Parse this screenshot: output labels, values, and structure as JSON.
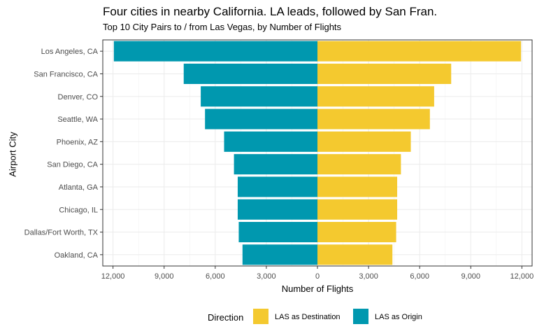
{
  "chart_data": {
    "type": "bar",
    "orientation": "horizontal-diverging",
    "title": "Four cities in nearby California. LA leads, followed by San Fran.",
    "subtitle": "Top 10 City Pairs to / from Las Vegas, by Number of Flights",
    "xlabel": "Number of Flights",
    "ylabel": "Airport City",
    "xlim": [
      -12600,
      12600
    ],
    "x_ticks": [
      -12000,
      -9000,
      -6000,
      -3000,
      0,
      3000,
      6000,
      9000,
      12000
    ],
    "x_tick_labels": [
      "12,000",
      "9,000",
      "6,000",
      "3,000",
      "0",
      "3,000",
      "6,000",
      "9,000",
      "12,000"
    ],
    "categories": [
      "Los Angeles, CA",
      "San Francisco, CA",
      "Denver, CO",
      "Seattle, WA",
      "Phoenix, AZ",
      "San Diego, CA",
      "Atlanta, GA",
      "Chicago, IL",
      "Dallas/Fort Worth, TX",
      "Oakland, CA"
    ],
    "series": [
      {
        "name": "LAS as Destination",
        "color": "#F4C92F",
        "values": [
          11950,
          7850,
          6850,
          6600,
          5480,
          4900,
          4680,
          4680,
          4620,
          4400
        ]
      },
      {
        "name": "LAS as Origin",
        "color": "#0098AF",
        "values": [
          11950,
          7850,
          6850,
          6600,
          5480,
          4900,
          4680,
          4680,
          4620,
          4400
        ]
      }
    ],
    "legend": {
      "title": "Direction",
      "position": "bottom"
    },
    "grid": true
  }
}
